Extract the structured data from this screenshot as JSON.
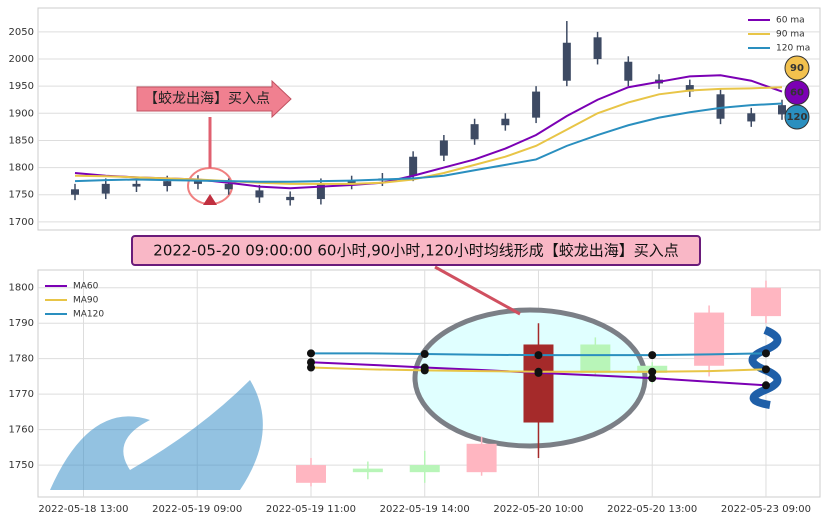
{
  "chart_data": [
    {
      "type": "candlestick",
      "color": "#3d4a63",
      "open": [
        1760,
        1752,
        1770,
        1766,
        1776,
        1770,
        1758,
        1746,
        1742,
        1770,
        1776,
        1785,
        1822,
        1852,
        1878,
        1892,
        1960,
        2040,
        1995,
        1962,
        1952,
        1935,
        1885,
        1898
      ],
      "high": [
        1770,
        1780,
        1780,
        1785,
        1786,
        1780,
        1768,
        1756,
        1780,
        1785,
        1790,
        1830,
        1860,
        1890,
        1900,
        1950,
        2070,
        2050,
        2005,
        1972,
        1962,
        1945,
        1910,
        1925
      ],
      "low": [
        1740,
        1742,
        1755,
        1756,
        1760,
        1750,
        1735,
        1730,
        1732,
        1760,
        1766,
        1775,
        1812,
        1842,
        1868,
        1882,
        1950,
        1990,
        1950,
        1945,
        1930,
        1880,
        1875,
        1888
      ],
      "close": [
        1750,
        1770,
        1765,
        1775,
        1770,
        1760,
        1745,
        1740,
        1770,
        1775,
        1780,
        1820,
        1850,
        1880,
        1890,
        1940,
        2030,
        2000,
        1960,
        1955,
        1940,
        1890,
        1900,
        1915
      ],
      "series": [
        {
          "name": "60 ma",
          "color": "#7b00b4",
          "values": [
            1790,
            1785,
            1782,
            1780,
            1778,
            1772,
            1765,
            1762,
            1765,
            1768,
            1772,
            1785,
            1800,
            1815,
            1835,
            1860,
            1895,
            1925,
            1948,
            1958,
            1968,
            1970,
            1960,
            1940
          ]
        },
        {
          "name": "90 ma",
          "color": "#e8c547",
          "values": [
            1785,
            1784,
            1782,
            1780,
            1778,
            1775,
            1772,
            1770,
            1770,
            1770,
            1772,
            1778,
            1790,
            1805,
            1820,
            1840,
            1870,
            1900,
            1920,
            1935,
            1942,
            1945,
            1946,
            1948
          ]
        },
        {
          "name": "120 ma",
          "color": "#2a8fbf",
          "values": [
            1775,
            1777,
            1778,
            1777,
            1776,
            1775,
            1774,
            1774,
            1775,
            1776,
            1778,
            1780,
            1785,
            1795,
            1805,
            1815,
            1840,
            1860,
            1878,
            1892,
            1902,
            1910,
            1915,
            1918
          ]
        }
      ],
      "ylim": [
        1685,
        2094
      ],
      "yticks": [
        1700,
        1750,
        1800,
        1850,
        1900,
        1950,
        2000,
        2050
      ],
      "grid": true,
      "legend": "upper right",
      "annotation": "【蛟龙出海】买入点",
      "badges": [
        {
          "label": "90",
          "color": "#f2c14e"
        },
        {
          "label": "60",
          "color": "#7b00b4"
        },
        {
          "label": "120",
          "color": "#2a8fbf"
        }
      ]
    },
    {
      "type": "candlestick",
      "x": [
        0,
        1,
        2,
        3,
        4,
        5,
        6,
        7,
        8
      ],
      "open": [
        1745,
        1749,
        1750,
        1748,
        1762,
        1784,
        1778,
        1778,
        1792
      ],
      "high": [
        1752,
        1751,
        1754,
        1758,
        1790,
        1786,
        1779,
        1795,
        1802
      ],
      "low": [
        1744,
        1746,
        1745,
        1747,
        1752,
        1775,
        1773,
        1775,
        1790
      ],
      "close": [
        1750,
        1748,
        1748,
        1756,
        1784,
        1776,
        1776,
        1793,
        1800
      ],
      "colors": [
        "#ffb6c1",
        "#b8f5b8",
        "#b8f5b8",
        "#ffb6c1",
        "#a52a2a",
        "#b8f5b8",
        "#b8f5b8",
        "#ffb6c1",
        "#ffb6c1"
      ],
      "series": [
        {
          "name": "MA60",
          "color": "#7b00b4",
          "values": [
            1779,
            1778.3,
            1777.5,
            1776.8,
            1776,
            1775.3,
            1774.5,
            1773.5,
            1772.5
          ]
        },
        {
          "name": "MA90",
          "color": "#e8c547",
          "values": [
            1777.5,
            1777,
            1776.7,
            1776.5,
            1776.3,
            1776.3,
            1776.3,
            1776.5,
            1777
          ]
        },
        {
          "name": "MA120",
          "color": "#2a8fbf",
          "values": [
            1781.5,
            1781.5,
            1781.3,
            1781.1,
            1781,
            1781,
            1781,
            1781.2,
            1781.5
          ]
        }
      ],
      "xlim": [
        -4.8,
        8.95
      ],
      "xticks": [
        {
          "value": -4,
          "label": "2022-05-18 13:00"
        },
        {
          "value": -2,
          "label": "2022-05-19 09:00"
        },
        {
          "value": 0,
          "label": "2022-05-19 11:00"
        },
        {
          "value": 2,
          "label": "2022-05-19 14:00"
        },
        {
          "value": 4,
          "label": "2022-05-20 10:00"
        },
        {
          "value": 6,
          "label": "2022-05-20 13:00"
        },
        {
          "value": 8,
          "label": "2022-05-23 09:00"
        }
      ],
      "ylim": [
        1741,
        1805
      ],
      "yticks": [
        1750,
        1760,
        1770,
        1780,
        1790,
        1800
      ],
      "grid": true,
      "legend": "upper left",
      "annotation": "2022-05-20 09:00:00 60小时,90小时,120小时均线形成【蛟龙出海】买入点"
    }
  ]
}
